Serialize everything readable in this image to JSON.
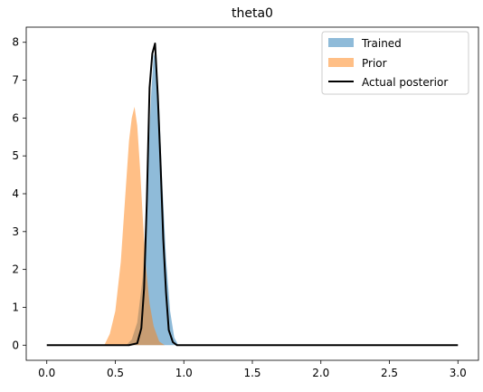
{
  "chart_data": {
    "type": "area",
    "title": "theta0",
    "xlabel": "",
    "ylabel": "",
    "xlim": [
      -0.15,
      3.15
    ],
    "ylim": [
      -0.4,
      8.4
    ],
    "x_ticks": [
      0.0,
      0.5,
      1.0,
      1.5,
      2.0,
      2.5,
      3.0
    ],
    "x_tick_labels": [
      "0.0",
      "0.5",
      "1.0",
      "1.5",
      "2.0",
      "2.5",
      "3.0"
    ],
    "y_ticks": [
      0,
      1,
      2,
      3,
      4,
      5,
      6,
      7,
      8
    ],
    "y_tick_labels": [
      "0",
      "1",
      "2",
      "3",
      "4",
      "5",
      "6",
      "7",
      "8"
    ],
    "grid": false,
    "legend_position": "top-right",
    "series": [
      {
        "name": "Trained",
        "kind": "filled-area",
        "color": "#1f77b4",
        "opacity": 0.5,
        "x": [
          0.58,
          0.62,
          0.66,
          0.7,
          0.73,
          0.76,
          0.78,
          0.8,
          0.82,
          0.84,
          0.87,
          0.9,
          0.93,
          0.96
        ],
        "y": [
          0.0,
          0.15,
          0.6,
          1.8,
          4.0,
          6.5,
          7.7,
          7.5,
          6.3,
          4.5,
          2.3,
          0.9,
          0.2,
          0.0
        ]
      },
      {
        "name": "Prior",
        "kind": "filled-area",
        "color": "#ff7f0e",
        "opacity": 0.5,
        "x": [
          0.42,
          0.46,
          0.5,
          0.54,
          0.57,
          0.6,
          0.62,
          0.64,
          0.66,
          0.68,
          0.7,
          0.72,
          0.75,
          0.78,
          0.82,
          0.86
        ],
        "y": [
          0.0,
          0.3,
          0.9,
          2.2,
          3.8,
          5.4,
          6.0,
          6.3,
          5.8,
          4.7,
          3.4,
          2.2,
          1.1,
          0.5,
          0.1,
          0.0
        ]
      },
      {
        "name": "Actual posterior",
        "kind": "line",
        "color": "#000000",
        "x": [
          0.0,
          0.6,
          0.66,
          0.69,
          0.71,
          0.73,
          0.75,
          0.77,
          0.79,
          0.81,
          0.83,
          0.85,
          0.87,
          0.89,
          0.92,
          0.95,
          1.0,
          3.0
        ],
        "y": [
          0.0,
          0.0,
          0.05,
          0.45,
          1.5,
          3.8,
          6.8,
          7.7,
          7.97,
          6.6,
          4.8,
          2.8,
          1.4,
          0.4,
          0.08,
          0.0,
          0.0,
          0.0
        ]
      }
    ]
  }
}
